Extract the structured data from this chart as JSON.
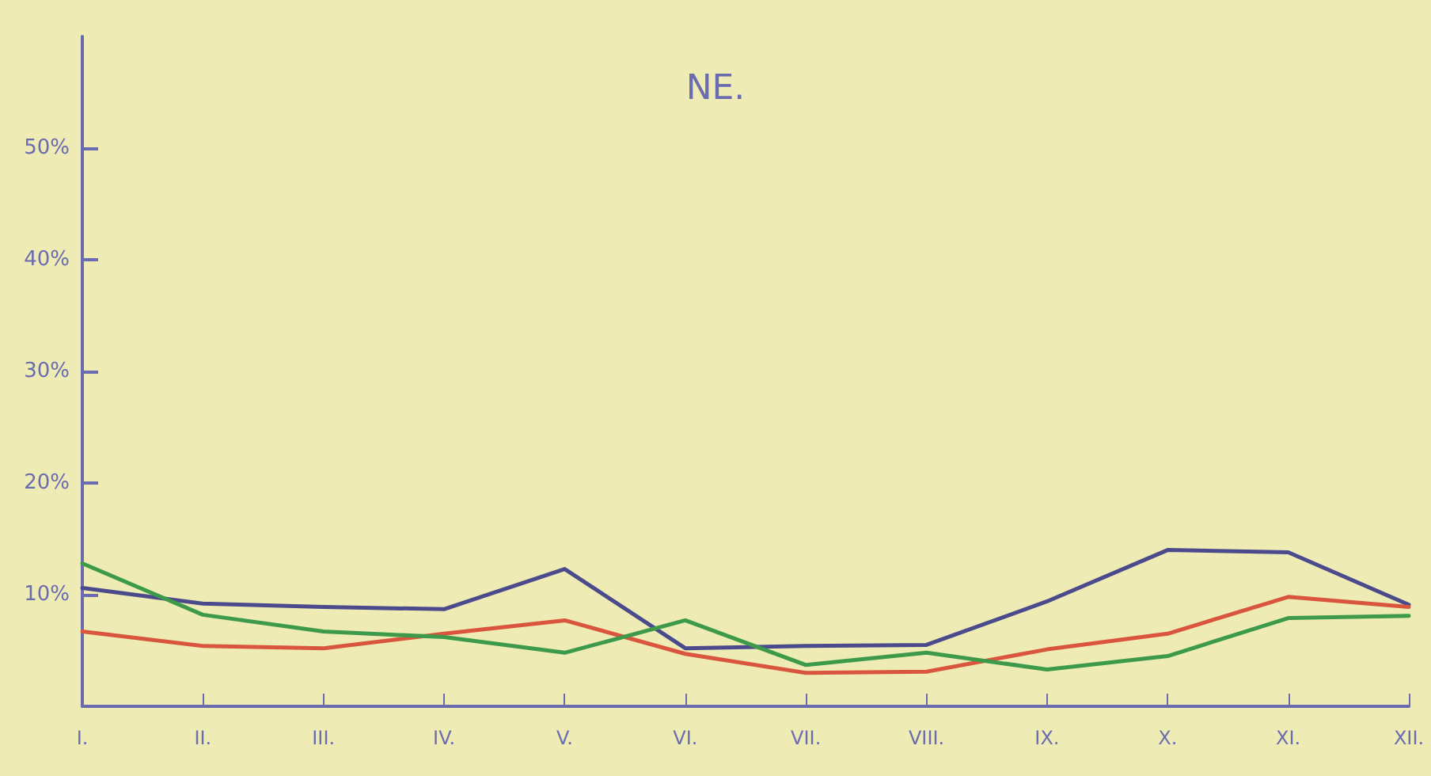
{
  "chart_data": {
    "type": "line",
    "title": "NE.",
    "categories": [
      "I.",
      "II.",
      "III.",
      "IV.",
      "V.",
      "VI.",
      "VII.",
      "VIII.",
      "IX.",
      "X.",
      "XI.",
      "XII."
    ],
    "series": [
      {
        "color": "#4a4a8c",
        "values": [
          10.6,
          9.2,
          8.9,
          8.7,
          12.3,
          5.2,
          5.4,
          5.5,
          9.4,
          14.0,
          13.8,
          9.1
        ]
      },
      {
        "color": "#d9553e",
        "values": [
          6.7,
          5.4,
          5.2,
          6.5,
          7.7,
          4.7,
          3.0,
          3.1,
          5.1,
          6.5,
          9.8,
          8.9
        ]
      },
      {
        "color": "#3c9a4a",
        "values": [
          12.8,
          8.2,
          6.7,
          6.2,
          4.8,
          7.7,
          3.7,
          4.8,
          3.3,
          4.5,
          7.9,
          8.1
        ]
      }
    ],
    "ylim": [
      0,
      60
    ],
    "yticks": [
      {
        "value": 10,
        "label": "10%"
      },
      {
        "value": 20,
        "label": "20%"
      },
      {
        "value": 30,
        "label": "30%"
      },
      {
        "value": 40,
        "label": "40%"
      },
      {
        "value": 50,
        "label": "50%"
      }
    ],
    "grid": false,
    "marker": "none",
    "line_style": "solid"
  }
}
